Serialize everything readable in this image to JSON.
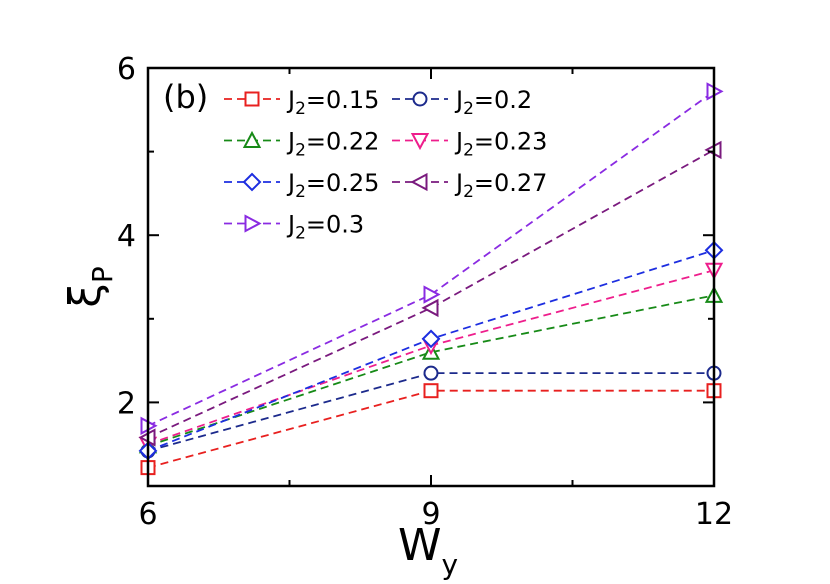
{
  "chart_data": {
    "type": "line",
    "panel_label": "(b)",
    "xlabel": {
      "main": "W",
      "sub": "y"
    },
    "ylabel": {
      "main": "ξ",
      "sub": "P"
    },
    "xlim": [
      6,
      12
    ],
    "ylim": [
      1,
      6
    ],
    "xticks": [
      6,
      9,
      12
    ],
    "yticks": [
      2,
      4,
      6
    ],
    "x": [
      6,
      9,
      12
    ],
    "grid": false,
    "legend_position": "top-left",
    "series": [
      {
        "name": "0.15",
        "color": "#e8201f",
        "marker": "square",
        "values": [
          1.22,
          2.14,
          2.14
        ]
      },
      {
        "name": "0.2",
        "color": "#1c2a8c",
        "marker": "circle",
        "values": [
          1.42,
          2.35,
          2.35
        ]
      },
      {
        "name": "0.22",
        "color": "#178a17",
        "marker": "triangle-up",
        "values": [
          1.48,
          2.6,
          3.28
        ]
      },
      {
        "name": "0.23",
        "color": "#ee1e8c",
        "marker": "triangle-down",
        "values": [
          1.5,
          2.68,
          3.58
        ]
      },
      {
        "name": "0.25",
        "color": "#1d2ee0",
        "marker": "diamond",
        "values": [
          1.42,
          2.76,
          3.82
        ]
      },
      {
        "name": "0.27",
        "color": "#7a1a7e",
        "marker": "triangle-left",
        "values": [
          1.58,
          3.13,
          5.02
        ]
      },
      {
        "name": "0.3",
        "color": "#8a2be2",
        "marker": "triangle-right",
        "values": [
          1.72,
          3.29,
          5.72
        ]
      }
    ],
    "legend_prefix": {
      "main": "J",
      "sub": "2",
      "eq": "="
    }
  }
}
